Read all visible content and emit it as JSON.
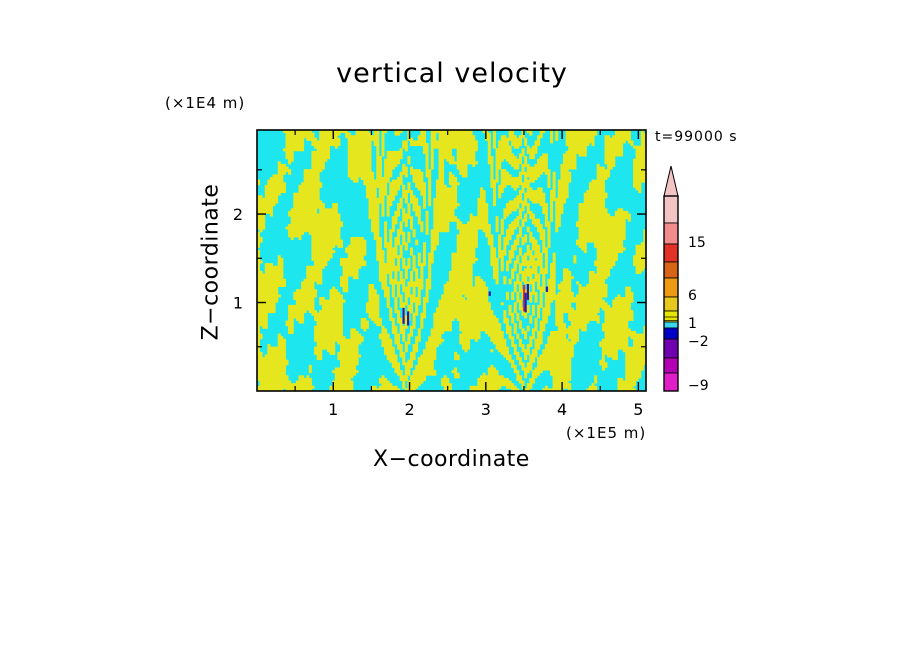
{
  "chart_data": {
    "type": "heatmap",
    "title": "vertical velocity",
    "xlabel": "X−coordinate",
    "ylabel": "Z−coordinate",
    "x_scale_label": "(×1E5 m)",
    "y_scale_label": "(×1E4 m)",
    "time_label": "t=99000 s",
    "xlim": [
      0,
      5.1
    ],
    "ylim": [
      0,
      2.95
    ],
    "x_ticks": [
      1,
      2,
      3,
      4,
      5
    ],
    "y_ticks": [
      1,
      2
    ],
    "x_tick_labels": [
      "1",
      "2",
      "3",
      "4",
      "5"
    ],
    "y_tick_labels": [
      "1",
      "2"
    ],
    "colorbar": {
      "tick_values": [
        15,
        6,
        1,
        -2,
        -9
      ],
      "tick_labels": [
        "15",
        "6",
        "1",
        "−2",
        "−9"
      ],
      "colors_top_to_bottom": [
        "#f2c4c4",
        "#f28c8c",
        "#e23226",
        "#d86418",
        "#ec9a12",
        "#e6c81e",
        "#e6e600",
        "#3ad7ee",
        "#0000c8",
        "#7000b0",
        "#b400b4",
        "#e01ec8"
      ],
      "extend_max": true
    },
    "field_colors": {
      "positive": "#e6e61e",
      "negative": "#1ee6ee",
      "strong_up": "#e23226",
      "strong_down": "#2818b4"
    }
  }
}
